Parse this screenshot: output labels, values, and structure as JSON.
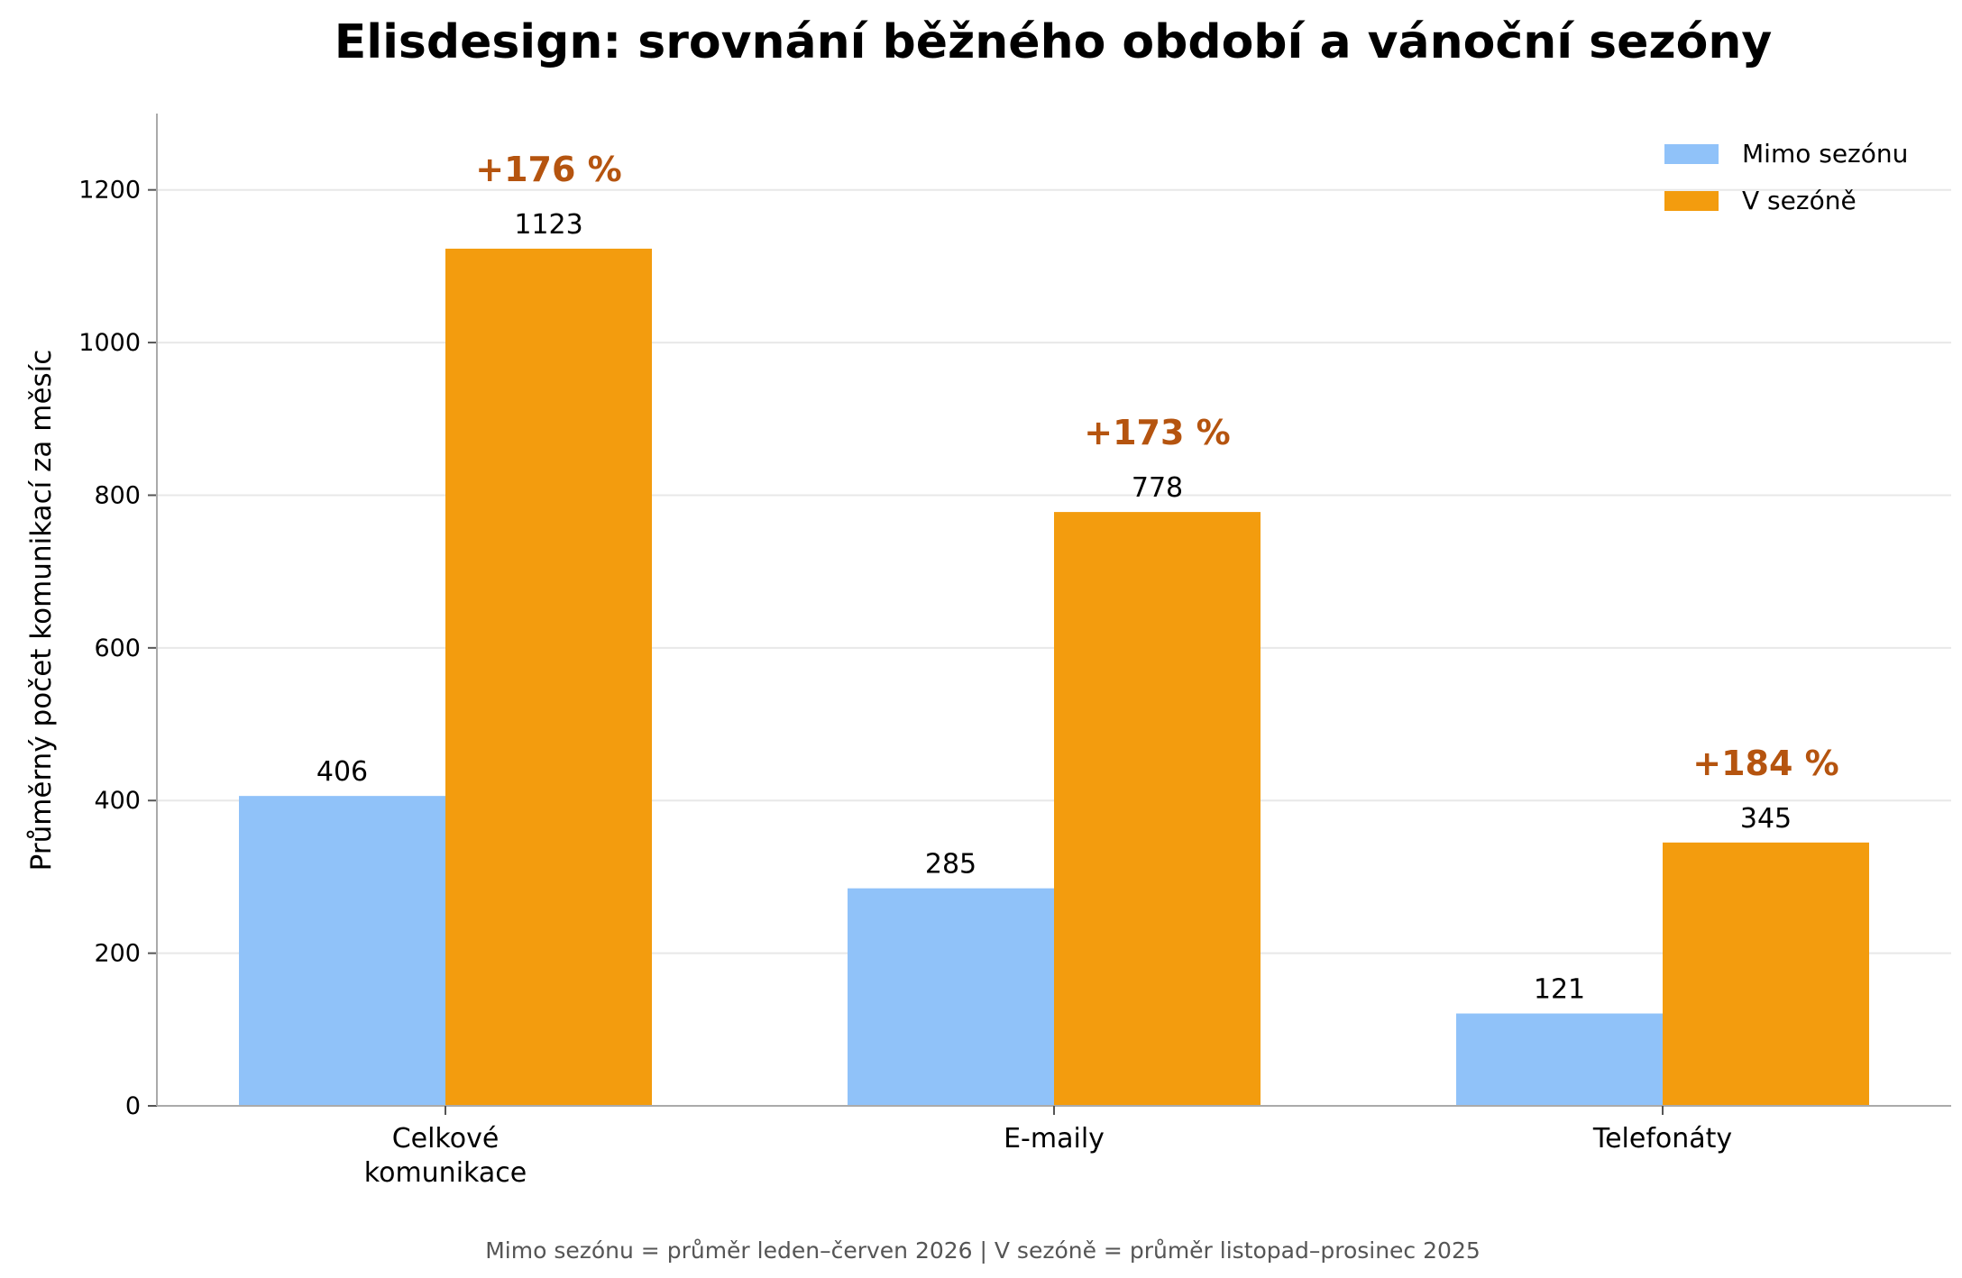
{
  "chart_data": {
    "type": "bar",
    "title": "Elisdesign: srovnání běžného období a vánoční sezóny",
    "ylabel": "Průměrný počet komunikací za měsíc",
    "xlabel": "",
    "categories": [
      "Celkové\nkomunikace",
      "E-maily",
      "Telefonáty"
    ],
    "series": [
      {
        "name": "Mimo sezónu",
        "values": [
          406,
          285,
          121
        ],
        "color": "#90c2f9"
      },
      {
        "name": "V sezóně",
        "values": [
          1123,
          778,
          345
        ],
        "color": "#f39c0e"
      }
    ],
    "value_labels": [
      [
        "406",
        "285",
        "121"
      ],
      [
        "1123",
        "778",
        "345"
      ]
    ],
    "change_labels": [
      "+176 %",
      "+173 %",
      "+184 %"
    ],
    "change_color": "#b5540f",
    "ylim": [
      0,
      1300
    ],
    "yticks": [
      0,
      200,
      400,
      600,
      800,
      1000,
      1200
    ],
    "grid": "horizontal",
    "legend_position": "top-right",
    "footnote": "Mimo sezónu = průměr leden–červen 2026 | V sezóně = průměr listopad–prosinec 2025"
  }
}
